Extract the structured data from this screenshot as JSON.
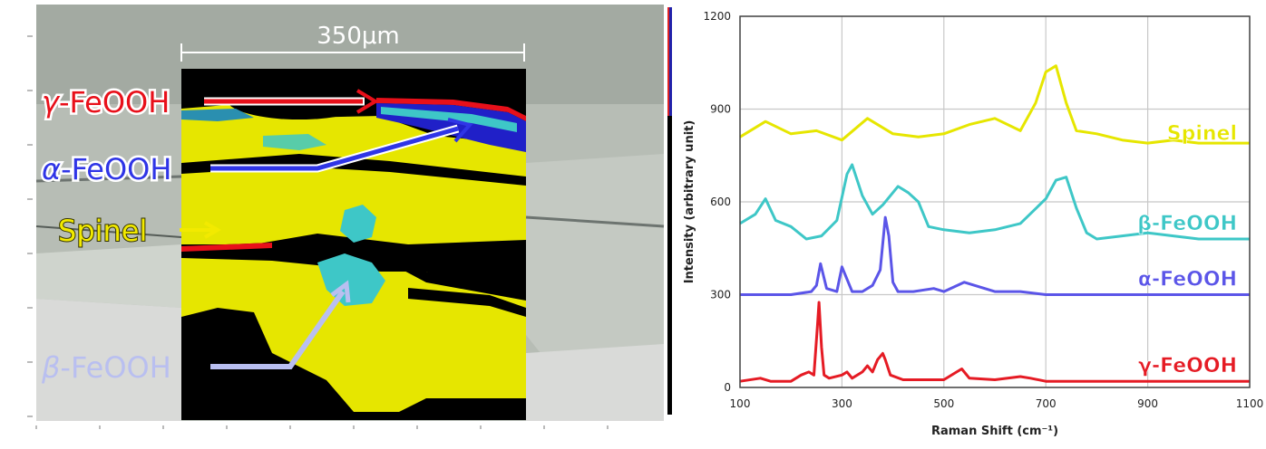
{
  "scale_bar": {
    "label": "350μm"
  },
  "map_labels": [
    {
      "greek": "γ",
      "suffix": "-FeOOH",
      "color": "#e8101a"
    },
    {
      "greek": "α",
      "suffix": "-FeOOH",
      "color": "#2f35e6"
    },
    {
      "greek": "",
      "suffix": "Spinel",
      "color": "#f2ea00"
    },
    {
      "greek": "β",
      "suffix": "-FeOOH",
      "color": "#b9bff0"
    }
  ],
  "colors": {
    "gamma": "#e51b24",
    "alpha": "#5b55e8",
    "beta": "#3ec7c7",
    "spinel": "#e6e600",
    "phase_map_bg": "#000000",
    "micrograph": "#b7bdb5"
  },
  "chart_data": {
    "type": "line",
    "xlabel": "Raman Shift (cm⁻¹)",
    "ylabel": "Intensity (arbitrary unit)",
    "xlim": [
      100,
      1100
    ],
    "ylim": [
      0,
      1200
    ],
    "x_ticks": [
      100,
      300,
      500,
      700,
      900,
      1100
    ],
    "y_ticks": [
      0,
      300,
      600,
      900,
      1200
    ],
    "grid": true,
    "series": [
      {
        "name": "Spinel",
        "color": "#e6e600",
        "label_y": 800,
        "x": [
          100,
          150,
          200,
          250,
          300,
          350,
          400,
          450,
          500,
          550,
          600,
          650,
          680,
          700,
          720,
          740,
          760,
          800,
          850,
          900,
          950,
          1000,
          1050,
          1100
        ],
        "y": [
          810,
          860,
          820,
          830,
          800,
          870,
          820,
          810,
          820,
          850,
          870,
          830,
          920,
          1020,
          1040,
          920,
          830,
          820,
          800,
          790,
          800,
          790,
          790,
          790
        ]
      },
      {
        "name": "β-FeOOH",
        "color": "#3ec7c7",
        "label_y": 510,
        "x": [
          100,
          130,
          150,
          170,
          200,
          230,
          260,
          290,
          310,
          320,
          340,
          360,
          380,
          410,
          430,
          450,
          470,
          500,
          550,
          600,
          650,
          700,
          720,
          740,
          760,
          780,
          800,
          850,
          900,
          950,
          1000,
          1050,
          1100
        ],
        "y": [
          530,
          560,
          610,
          540,
          520,
          480,
          490,
          540,
          690,
          720,
          620,
          560,
          590,
          650,
          630,
          600,
          520,
          510,
          500,
          510,
          530,
          610,
          670,
          680,
          580,
          500,
          480,
          490,
          500,
          490,
          480,
          480,
          480
        ]
      },
      {
        "name": "α-FeOOH",
        "color": "#5b55e8",
        "label_y": 330,
        "x": [
          100,
          200,
          240,
          250,
          258,
          270,
          290,
          300,
          310,
          320,
          340,
          360,
          375,
          385,
          392,
          400,
          410,
          440,
          480,
          500,
          540,
          600,
          650,
          700,
          800,
          900,
          1000,
          1100
        ],
        "y": [
          300,
          300,
          310,
          330,
          400,
          320,
          310,
          390,
          350,
          310,
          310,
          330,
          380,
          550,
          490,
          340,
          310,
          310,
          320,
          310,
          340,
          310,
          310,
          300,
          300,
          300,
          300,
          300
        ]
      },
      {
        "name": "γ-FeOOH",
        "color": "#e51b24",
        "label_y": 50,
        "x": [
          100,
          140,
          160,
          200,
          220,
          235,
          245,
          252,
          255,
          260,
          265,
          275,
          300,
          310,
          320,
          340,
          350,
          360,
          370,
          380,
          385,
          395,
          420,
          500,
          525,
          535,
          550,
          600,
          650,
          670,
          700,
          800,
          900,
          1000,
          1100
        ],
        "y": [
          20,
          30,
          20,
          20,
          40,
          50,
          40,
          200,
          275,
          130,
          40,
          30,
          40,
          50,
          30,
          50,
          70,
          50,
          90,
          110,
          90,
          40,
          25,
          25,
          50,
          60,
          30,
          25,
          35,
          30,
          20,
          20,
          20,
          20,
          20
        ]
      }
    ]
  }
}
